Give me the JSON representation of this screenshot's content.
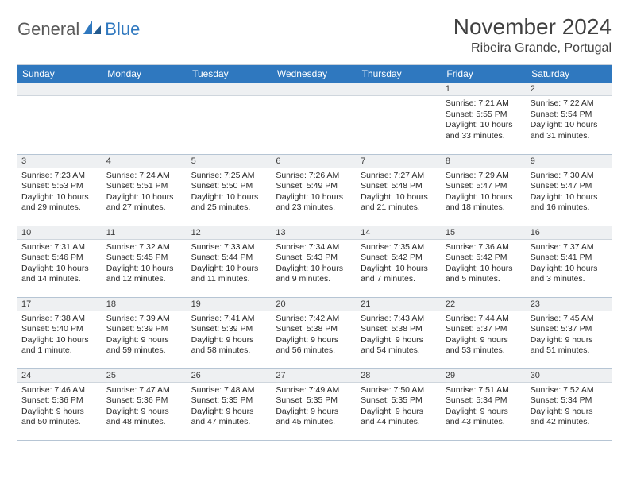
{
  "brand": {
    "part1": "General",
    "part2": "Blue"
  },
  "title": "November 2024",
  "location": "Ribeira Grande, Portugal",
  "colors": {
    "header_bg": "#2f78bf",
    "header_text": "#ffffff",
    "dayhead_bg": "#eef0f2",
    "text": "#2b2b2b",
    "rule": "#b6c5d4"
  },
  "weekdays": [
    "Sunday",
    "Monday",
    "Tuesday",
    "Wednesday",
    "Thursday",
    "Friday",
    "Saturday"
  ],
  "weeks": [
    [
      null,
      null,
      null,
      null,
      null,
      {
        "n": "1",
        "sunrise": "Sunrise: 7:21 AM",
        "sunset": "Sunset: 5:55 PM",
        "daylight": "Daylight: 10 hours and 33 minutes."
      },
      {
        "n": "2",
        "sunrise": "Sunrise: 7:22 AM",
        "sunset": "Sunset: 5:54 PM",
        "daylight": "Daylight: 10 hours and 31 minutes."
      }
    ],
    [
      {
        "n": "3",
        "sunrise": "Sunrise: 7:23 AM",
        "sunset": "Sunset: 5:53 PM",
        "daylight": "Daylight: 10 hours and 29 minutes."
      },
      {
        "n": "4",
        "sunrise": "Sunrise: 7:24 AM",
        "sunset": "Sunset: 5:51 PM",
        "daylight": "Daylight: 10 hours and 27 minutes."
      },
      {
        "n": "5",
        "sunrise": "Sunrise: 7:25 AM",
        "sunset": "Sunset: 5:50 PM",
        "daylight": "Daylight: 10 hours and 25 minutes."
      },
      {
        "n": "6",
        "sunrise": "Sunrise: 7:26 AM",
        "sunset": "Sunset: 5:49 PM",
        "daylight": "Daylight: 10 hours and 23 minutes."
      },
      {
        "n": "7",
        "sunrise": "Sunrise: 7:27 AM",
        "sunset": "Sunset: 5:48 PM",
        "daylight": "Daylight: 10 hours and 21 minutes."
      },
      {
        "n": "8",
        "sunrise": "Sunrise: 7:29 AM",
        "sunset": "Sunset: 5:47 PM",
        "daylight": "Daylight: 10 hours and 18 minutes."
      },
      {
        "n": "9",
        "sunrise": "Sunrise: 7:30 AM",
        "sunset": "Sunset: 5:47 PM",
        "daylight": "Daylight: 10 hours and 16 minutes."
      }
    ],
    [
      {
        "n": "10",
        "sunrise": "Sunrise: 7:31 AM",
        "sunset": "Sunset: 5:46 PM",
        "daylight": "Daylight: 10 hours and 14 minutes."
      },
      {
        "n": "11",
        "sunrise": "Sunrise: 7:32 AM",
        "sunset": "Sunset: 5:45 PM",
        "daylight": "Daylight: 10 hours and 12 minutes."
      },
      {
        "n": "12",
        "sunrise": "Sunrise: 7:33 AM",
        "sunset": "Sunset: 5:44 PM",
        "daylight": "Daylight: 10 hours and 11 minutes."
      },
      {
        "n": "13",
        "sunrise": "Sunrise: 7:34 AM",
        "sunset": "Sunset: 5:43 PM",
        "daylight": "Daylight: 10 hours and 9 minutes."
      },
      {
        "n": "14",
        "sunrise": "Sunrise: 7:35 AM",
        "sunset": "Sunset: 5:42 PM",
        "daylight": "Daylight: 10 hours and 7 minutes."
      },
      {
        "n": "15",
        "sunrise": "Sunrise: 7:36 AM",
        "sunset": "Sunset: 5:42 PM",
        "daylight": "Daylight: 10 hours and 5 minutes."
      },
      {
        "n": "16",
        "sunrise": "Sunrise: 7:37 AM",
        "sunset": "Sunset: 5:41 PM",
        "daylight": "Daylight: 10 hours and 3 minutes."
      }
    ],
    [
      {
        "n": "17",
        "sunrise": "Sunrise: 7:38 AM",
        "sunset": "Sunset: 5:40 PM",
        "daylight": "Daylight: 10 hours and 1 minute."
      },
      {
        "n": "18",
        "sunrise": "Sunrise: 7:39 AM",
        "sunset": "Sunset: 5:39 PM",
        "daylight": "Daylight: 9 hours and 59 minutes."
      },
      {
        "n": "19",
        "sunrise": "Sunrise: 7:41 AM",
        "sunset": "Sunset: 5:39 PM",
        "daylight": "Daylight: 9 hours and 58 minutes."
      },
      {
        "n": "20",
        "sunrise": "Sunrise: 7:42 AM",
        "sunset": "Sunset: 5:38 PM",
        "daylight": "Daylight: 9 hours and 56 minutes."
      },
      {
        "n": "21",
        "sunrise": "Sunrise: 7:43 AM",
        "sunset": "Sunset: 5:38 PM",
        "daylight": "Daylight: 9 hours and 54 minutes."
      },
      {
        "n": "22",
        "sunrise": "Sunrise: 7:44 AM",
        "sunset": "Sunset: 5:37 PM",
        "daylight": "Daylight: 9 hours and 53 minutes."
      },
      {
        "n": "23",
        "sunrise": "Sunrise: 7:45 AM",
        "sunset": "Sunset: 5:37 PM",
        "daylight": "Daylight: 9 hours and 51 minutes."
      }
    ],
    [
      {
        "n": "24",
        "sunrise": "Sunrise: 7:46 AM",
        "sunset": "Sunset: 5:36 PM",
        "daylight": "Daylight: 9 hours and 50 minutes."
      },
      {
        "n": "25",
        "sunrise": "Sunrise: 7:47 AM",
        "sunset": "Sunset: 5:36 PM",
        "daylight": "Daylight: 9 hours and 48 minutes."
      },
      {
        "n": "26",
        "sunrise": "Sunrise: 7:48 AM",
        "sunset": "Sunset: 5:35 PM",
        "daylight": "Daylight: 9 hours and 47 minutes."
      },
      {
        "n": "27",
        "sunrise": "Sunrise: 7:49 AM",
        "sunset": "Sunset: 5:35 PM",
        "daylight": "Daylight: 9 hours and 45 minutes."
      },
      {
        "n": "28",
        "sunrise": "Sunrise: 7:50 AM",
        "sunset": "Sunset: 5:35 PM",
        "daylight": "Daylight: 9 hours and 44 minutes."
      },
      {
        "n": "29",
        "sunrise": "Sunrise: 7:51 AM",
        "sunset": "Sunset: 5:34 PM",
        "daylight": "Daylight: 9 hours and 43 minutes."
      },
      {
        "n": "30",
        "sunrise": "Sunrise: 7:52 AM",
        "sunset": "Sunset: 5:34 PM",
        "daylight": "Daylight: 9 hours and 42 minutes."
      }
    ]
  ]
}
